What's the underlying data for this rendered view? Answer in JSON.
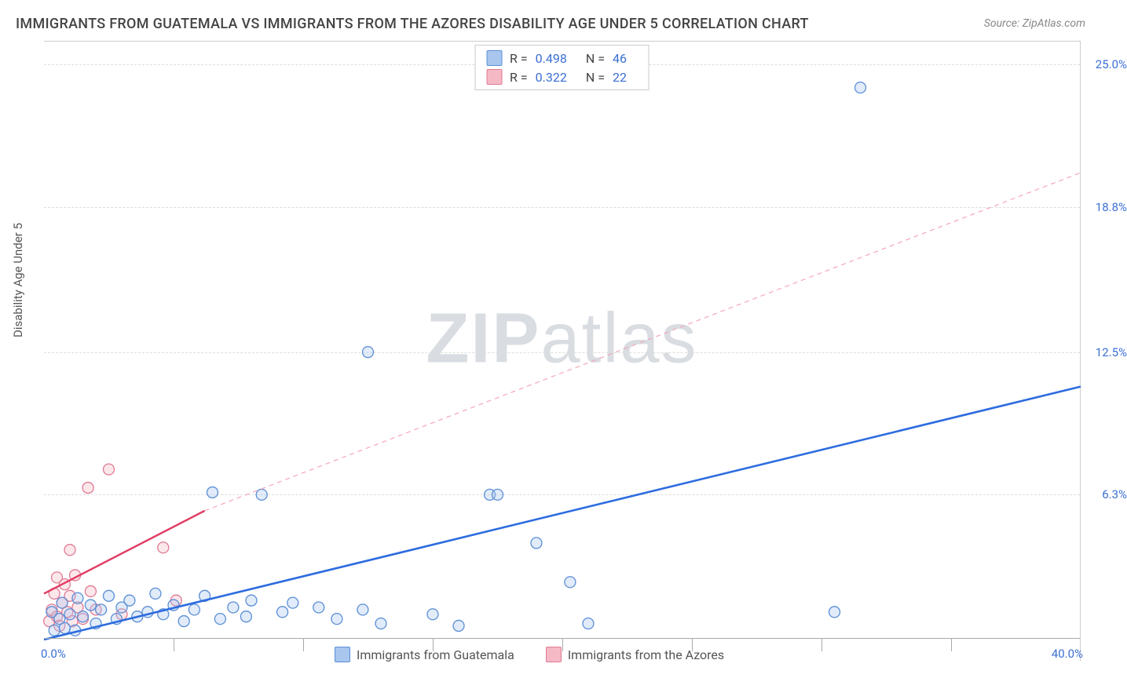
{
  "title": "IMMIGRANTS FROM GUATEMALA VS IMMIGRANTS FROM THE AZORES DISABILITY AGE UNDER 5 CORRELATION CHART",
  "source": "Source: ZipAtlas.com",
  "y_axis_label": "Disability Age Under 5",
  "watermark": {
    "part1": "ZIP",
    "part2": "atlas"
  },
  "chart": {
    "type": "scatter",
    "background_color": "#ffffff",
    "grid_color": "#dddddd",
    "axis_color": "#aaaaaa",
    "xlim": [
      0.0,
      40.0
    ],
    "ylim": [
      0.0,
      26.0
    ],
    "x_tick_min_label": "0.0%",
    "x_tick_max_label": "40.0%",
    "x_tick_positions": [
      5,
      10,
      15,
      20,
      25,
      30,
      35
    ],
    "y_ticks": [
      {
        "value": 6.3,
        "label": "6.3%"
      },
      {
        "value": 12.5,
        "label": "12.5%"
      },
      {
        "value": 18.8,
        "label": "18.8%"
      },
      {
        "value": 25.0,
        "label": "25.0%"
      }
    ],
    "marker_radius": 7,
    "marker_fill_opacity": 0.35,
    "marker_stroke_width": 1.3,
    "series": {
      "guatemala": {
        "label": "Immigrants from Guatemala",
        "fill": "#a9c6ee",
        "stroke": "#5b8fd6",
        "trend": {
          "x1": 0.0,
          "y1": 0.0,
          "x2": 40.0,
          "y2": 11.0,
          "color": "#2d6cdf",
          "width": 2.6,
          "dash": "none"
        },
        "stats": {
          "R": "0.498",
          "N": "46"
        },
        "points": [
          [
            0.3,
            1.2
          ],
          [
            0.4,
            0.4
          ],
          [
            0.6,
            0.9
          ],
          [
            0.7,
            1.6
          ],
          [
            0.8,
            0.5
          ],
          [
            1.0,
            1.1
          ],
          [
            1.2,
            0.4
          ],
          [
            1.3,
            1.8
          ],
          [
            1.5,
            1.0
          ],
          [
            1.8,
            1.5
          ],
          [
            2.0,
            0.7
          ],
          [
            2.2,
            1.3
          ],
          [
            2.5,
            1.9
          ],
          [
            2.8,
            0.9
          ],
          [
            3.0,
            1.4
          ],
          [
            3.3,
            1.7
          ],
          [
            3.6,
            1.0
          ],
          [
            4.0,
            1.2
          ],
          [
            4.3,
            2.0
          ],
          [
            4.6,
            1.1
          ],
          [
            5.0,
            1.5
          ],
          [
            5.4,
            0.8
          ],
          [
            5.8,
            1.3
          ],
          [
            6.2,
            1.9
          ],
          [
            6.5,
            6.4
          ],
          [
            6.8,
            0.9
          ],
          [
            7.3,
            1.4
          ],
          [
            7.8,
            1.0
          ],
          [
            8.0,
            1.7
          ],
          [
            8.4,
            6.3
          ],
          [
            9.2,
            1.2
          ],
          [
            9.6,
            1.6
          ],
          [
            10.6,
            1.4
          ],
          [
            11.3,
            0.9
          ],
          [
            12.3,
            1.3
          ],
          [
            13.0,
            0.7
          ],
          [
            12.5,
            12.5
          ],
          [
            15.0,
            1.1
          ],
          [
            16.0,
            0.6
          ],
          [
            17.2,
            6.3
          ],
          [
            17.5,
            6.3
          ],
          [
            19.0,
            4.2
          ],
          [
            20.3,
            2.5
          ],
          [
            21.0,
            0.7
          ],
          [
            30.5,
            1.2
          ],
          [
            31.5,
            24.0
          ]
        ]
      },
      "azores": {
        "label": "Immigrants from the Azores",
        "fill": "#f5b9c6",
        "stroke": "#e07a94",
        "trend": {
          "x1": 0.0,
          "y1": 2.0,
          "x2": 6.2,
          "y2": 5.6,
          "color": "#e23d64",
          "width": 2.4,
          "dash": "none"
        },
        "trend_ext": {
          "x1": 6.2,
          "y1": 5.6,
          "x2": 40.0,
          "y2": 20.3,
          "color": "#f3a7b8",
          "width": 1.2,
          "dash": "6 5"
        },
        "stats": {
          "R": "0.322",
          "N": "22"
        },
        "points": [
          [
            0.2,
            0.8
          ],
          [
            0.3,
            1.3
          ],
          [
            0.4,
            2.0
          ],
          [
            0.5,
            1.0
          ],
          [
            0.5,
            2.7
          ],
          [
            0.6,
            0.6
          ],
          [
            0.7,
            1.6
          ],
          [
            0.8,
            2.4
          ],
          [
            0.9,
            1.2
          ],
          [
            1.0,
            3.9
          ],
          [
            1.0,
            1.9
          ],
          [
            1.1,
            0.8
          ],
          [
            1.2,
            2.8
          ],
          [
            1.3,
            1.4
          ],
          [
            1.5,
            0.9
          ],
          [
            1.7,
            6.6
          ],
          [
            1.8,
            2.1
          ],
          [
            2.0,
            1.3
          ],
          [
            2.5,
            7.4
          ],
          [
            3.0,
            1.1
          ],
          [
            4.6,
            4.0
          ],
          [
            5.1,
            1.7
          ]
        ]
      }
    }
  },
  "stats_legend": {
    "r_label": "R =",
    "n_label": "N ="
  }
}
